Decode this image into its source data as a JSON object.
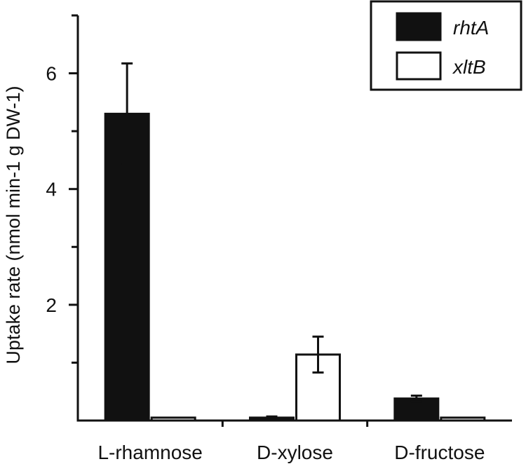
{
  "chart_data": {
    "type": "bar",
    "title": "",
    "xlabel": "",
    "ylabel": "Uptake rate (nmol min-1 g DW-1)",
    "ylim": [
      0,
      7
    ],
    "yticks": [
      2,
      4,
      6
    ],
    "categories": [
      "L-rhamnose",
      "D-xylose",
      "D-fructose"
    ],
    "series": [
      {
        "name": "rhtA",
        "fill": "#111111",
        "values": [
          5.3,
          0.05,
          0.38
        ],
        "errors": [
          0.87,
          0.02,
          0.05
        ]
      },
      {
        "name": "xltB",
        "fill": "#ffffff",
        "values": [
          0.05,
          1.14,
          0.05
        ],
        "errors": [
          0.0,
          0.31,
          0.0
        ]
      }
    ],
    "legend_position": "top-right",
    "grid": false
  }
}
